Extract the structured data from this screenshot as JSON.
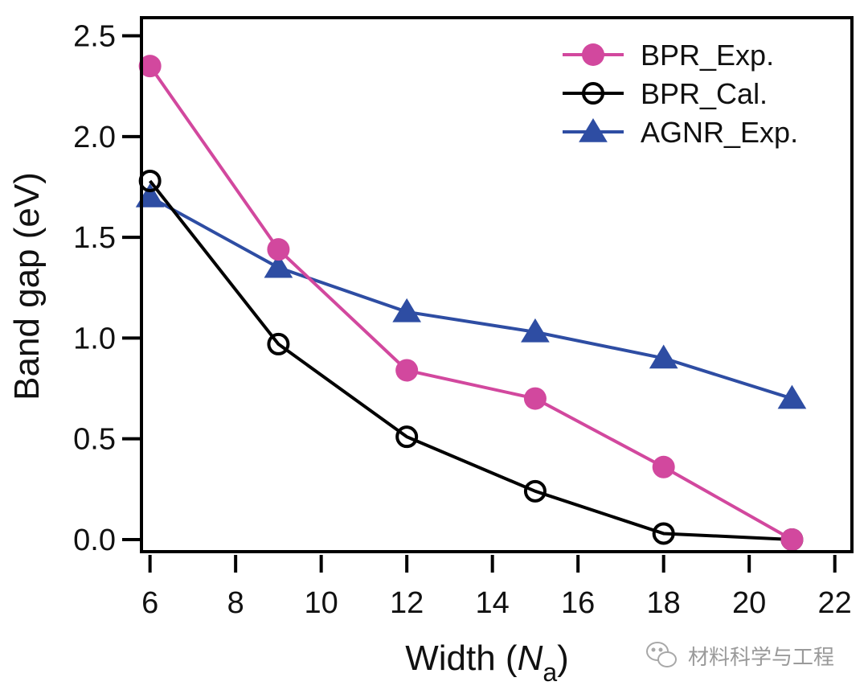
{
  "chart_data": {
    "type": "line",
    "title": "",
    "xlabel": "Width (N_a)",
    "xlabel_parts": {
      "prefix": "Width (",
      "italic": "N",
      "subscript": "a",
      "suffix": ")"
    },
    "ylabel": "Band gap (eV)",
    "xlim": [
      5.8,
      22.4
    ],
    "ylim": [
      -0.06,
      2.59
    ],
    "xticks": [
      6,
      8,
      10,
      12,
      14,
      16,
      18,
      20,
      22
    ],
    "xtick_labels": [
      "6",
      "8",
      "10",
      "12",
      "14",
      "16",
      "18",
      "20",
      "22"
    ],
    "yticks": [
      0.0,
      0.5,
      1.0,
      1.5,
      2.0,
      2.5
    ],
    "ytick_labels": [
      "0.0",
      "0.5",
      "1.0",
      "1.5",
      "2.0",
      "2.5"
    ],
    "grid": false,
    "legend_position": "top-right",
    "x": [
      6,
      9,
      12,
      15,
      18,
      21
    ],
    "series": [
      {
        "name": "BPR_Exp.",
        "marker": "filled-circle",
        "color": "#d2489e",
        "values": [
          2.35,
          1.44,
          0.84,
          0.7,
          0.36,
          0.0
        ]
      },
      {
        "name": "BPR_Cal.",
        "marker": "open-circle",
        "color": "#000000",
        "values": [
          1.78,
          0.97,
          0.51,
          0.24,
          0.03,
          0.0
        ]
      },
      {
        "name": "AGNR_Exp.",
        "marker": "filled-triangle",
        "color": "#2e4da3",
        "values": [
          1.7,
          1.35,
          1.13,
          1.03,
          0.9,
          0.7
        ]
      }
    ]
  },
  "watermark": {
    "icon": "wechat-icon",
    "text": "材料科学与工程"
  }
}
